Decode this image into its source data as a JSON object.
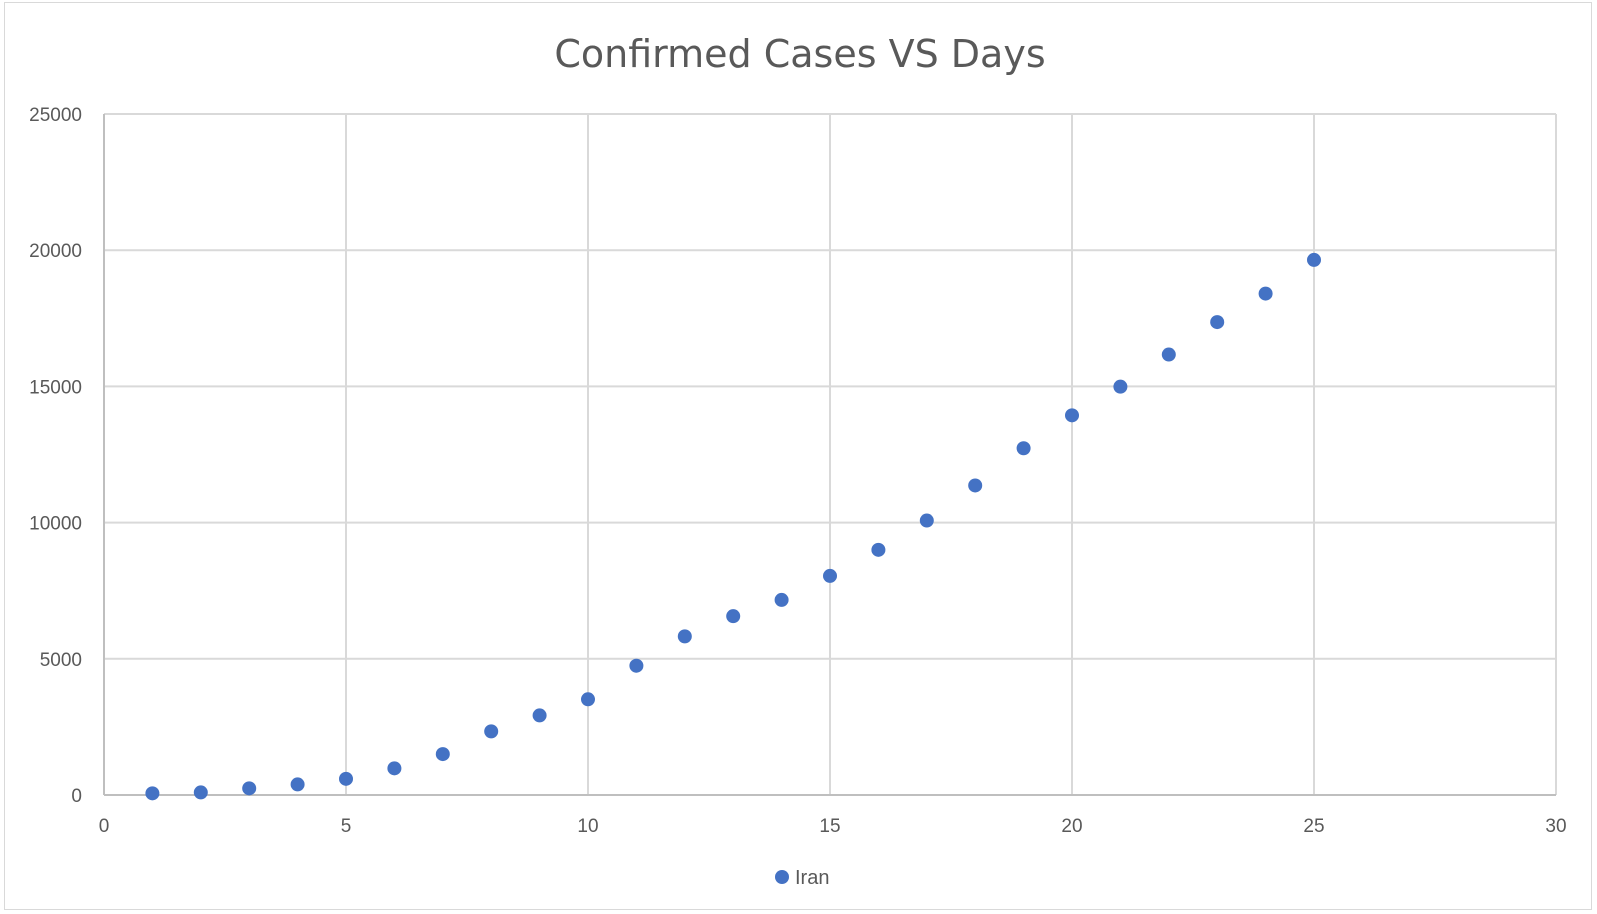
{
  "chart_data": {
    "type": "scatter",
    "title": "Confirmed Cases VS Days",
    "xlabel": "",
    "ylabel": "",
    "xlim": [
      0,
      30
    ],
    "ylim": [
      0,
      25000
    ],
    "x_ticks": [
      "0",
      "5",
      "10",
      "15",
      "20",
      "25",
      "30"
    ],
    "y_ticks": [
      "0",
      "5000",
      "10000",
      "15000",
      "20000",
      "25000"
    ],
    "grid": true,
    "legend_position": "bottom",
    "series": [
      {
        "name": "Iran",
        "color": "#4472c4",
        "x": [
          1,
          2,
          3,
          4,
          5,
          6,
          7,
          8,
          9,
          10,
          11,
          12,
          13,
          14,
          15,
          16,
          17,
          18,
          19,
          20,
          21,
          22,
          23,
          24,
          25
        ],
        "y": [
          61,
          95,
          245,
          388,
          593,
          978,
          1501,
          2336,
          2922,
          3513,
          4747,
          5823,
          6566,
          7161,
          8042,
          9000,
          10075,
          11364,
          12729,
          13938,
          14991,
          16169,
          17361,
          18407,
          19644
        ]
      }
    ]
  }
}
